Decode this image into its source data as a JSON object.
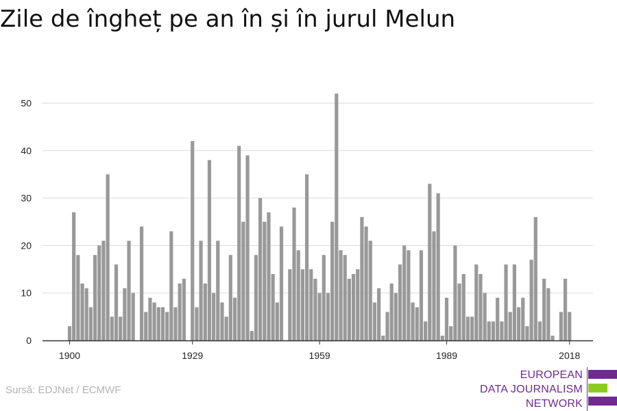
{
  "title": "Zile de îngheț pe an în și în jurul Melun",
  "source": "Sursă: EDJNet / ECMWF",
  "logo": {
    "lines": [
      "EUROPEAN",
      "DATA JOURNALISM",
      "NETWORK"
    ],
    "colors": {
      "purple": "#6e2a8e",
      "green": "#8ccc22"
    }
  },
  "colors": {
    "bar": "#999999",
    "grid": "#d9d9d9",
    "axis": "#333333",
    "text": "#222222"
  },
  "chart_data": {
    "type": "bar",
    "title": "Zile de îngheț pe an în și în jurul Melun",
    "xlabel": "",
    "ylabel": "",
    "ylim": [
      0,
      53
    ],
    "xlim": [
      1898,
      2024
    ],
    "yticks": [
      0,
      10,
      20,
      30,
      40,
      50
    ],
    "xticks": [
      1900,
      1929,
      1959,
      1989,
      2018
    ],
    "grid": true,
    "x": [
      1900,
      1901,
      1902,
      1903,
      1904,
      1905,
      1906,
      1907,
      1908,
      1909,
      1910,
      1911,
      1912,
      1913,
      1914,
      1915,
      1916,
      1917,
      1918,
      1919,
      1920,
      1921,
      1922,
      1923,
      1924,
      1925,
      1926,
      1927,
      1928,
      1929,
      1930,
      1931,
      1932,
      1933,
      1934,
      1935,
      1936,
      1937,
      1938,
      1939,
      1940,
      1941,
      1942,
      1943,
      1944,
      1945,
      1946,
      1947,
      1948,
      1949,
      1950,
      1951,
      1952,
      1953,
      1954,
      1955,
      1956,
      1957,
      1958,
      1959,
      1960,
      1961,
      1962,
      1963,
      1964,
      1965,
      1966,
      1967,
      1968,
      1969,
      1970,
      1971,
      1972,
      1973,
      1974,
      1975,
      1976,
      1977,
      1978,
      1979,
      1980,
      1981,
      1982,
      1983,
      1984,
      1985,
      1986,
      1987,
      1988,
      1989,
      1990,
      1991,
      1992,
      1993,
      1994,
      1995,
      1996,
      1997,
      1998,
      1999,
      2000,
      2001,
      2002,
      2003,
      2004,
      2005,
      2006,
      2007,
      2008,
      2009,
      2010,
      2011,
      2012,
      2013,
      2014,
      2015,
      2016,
      2017,
      2018,
      2019,
      2020
    ],
    "values": [
      3,
      27,
      18,
      12,
      11,
      7,
      18,
      20,
      21,
      35,
      5,
      16,
      5,
      11,
      21,
      10,
      0,
      24,
      6,
      9,
      8,
      7,
      7,
      6,
      23,
      7,
      12,
      13,
      0,
      42,
      7,
      21,
      12,
      38,
      10,
      21,
      8,
      5,
      18,
      9,
      41,
      25,
      39,
      2,
      18,
      30,
      25,
      27,
      14,
      8,
      24,
      0,
      15,
      28,
      19,
      15,
      35,
      15,
      13,
      10,
      18,
      10,
      25,
      52,
      19,
      18,
      13,
      14,
      15,
      26,
      24,
      21,
      8,
      11,
      1,
      6,
      12,
      10,
      16,
      20,
      19,
      8,
      7,
      19,
      4,
      33,
      23,
      31,
      1,
      9,
      3,
      20,
      12,
      14,
      5,
      5,
      16,
      14,
      10,
      4,
      4,
      9,
      4,
      16,
      6,
      16,
      7,
      9,
      3,
      17,
      26,
      4,
      13,
      11,
      1,
      0,
      6,
      13,
      6,
      0,
      0
    ]
  }
}
